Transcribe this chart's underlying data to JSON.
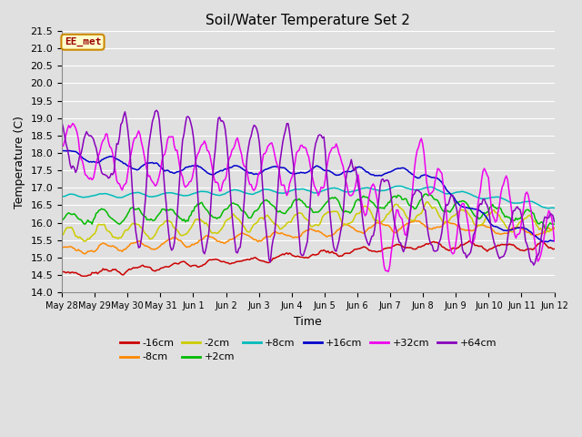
{
  "title": "Soil/Water Temperature Set 2",
  "xlabel": "Time",
  "ylabel": "Temperature (C)",
  "ylim": [
    14.0,
    21.5
  ],
  "yticks": [
    14.0,
    14.5,
    15.0,
    15.5,
    16.0,
    16.5,
    17.0,
    17.5,
    18.0,
    18.5,
    19.0,
    19.5,
    20.0,
    20.5,
    21.0,
    21.5
  ],
  "xtick_labels": [
    "May 28",
    "May 29",
    "May 30",
    "May 31",
    "Jun 1",
    "Jun 2",
    "Jun 3",
    "Jun 4",
    "Jun 5",
    "Jun 6",
    "Jun 7",
    "Jun 8",
    "Jun 9",
    "Jun 10",
    "Jun 11",
    "Jun 12"
  ],
  "background_color": "#e0e0e0",
  "plot_bg_color": "#e0e0e0",
  "grid_color": "#ffffff",
  "annotation_text": "EE_met",
  "annotation_bg": "#ffffcc",
  "annotation_border": "#cc8800",
  "series": [
    {
      "label": "-16cm",
      "color": "#cc0000"
    },
    {
      "label": "-8cm",
      "color": "#ff8800"
    },
    {
      "label": "-2cm",
      "color": "#cccc00"
    },
    {
      "label": "+2cm",
      "color": "#00bb00"
    },
    {
      "label": "+8cm",
      "color": "#00bbbb"
    },
    {
      "label": "+16cm",
      "color": "#0000cc"
    },
    {
      "label": "+32cm",
      "color": "#ee00ee"
    },
    {
      "label": "+64cm",
      "color": "#8800bb"
    }
  ]
}
